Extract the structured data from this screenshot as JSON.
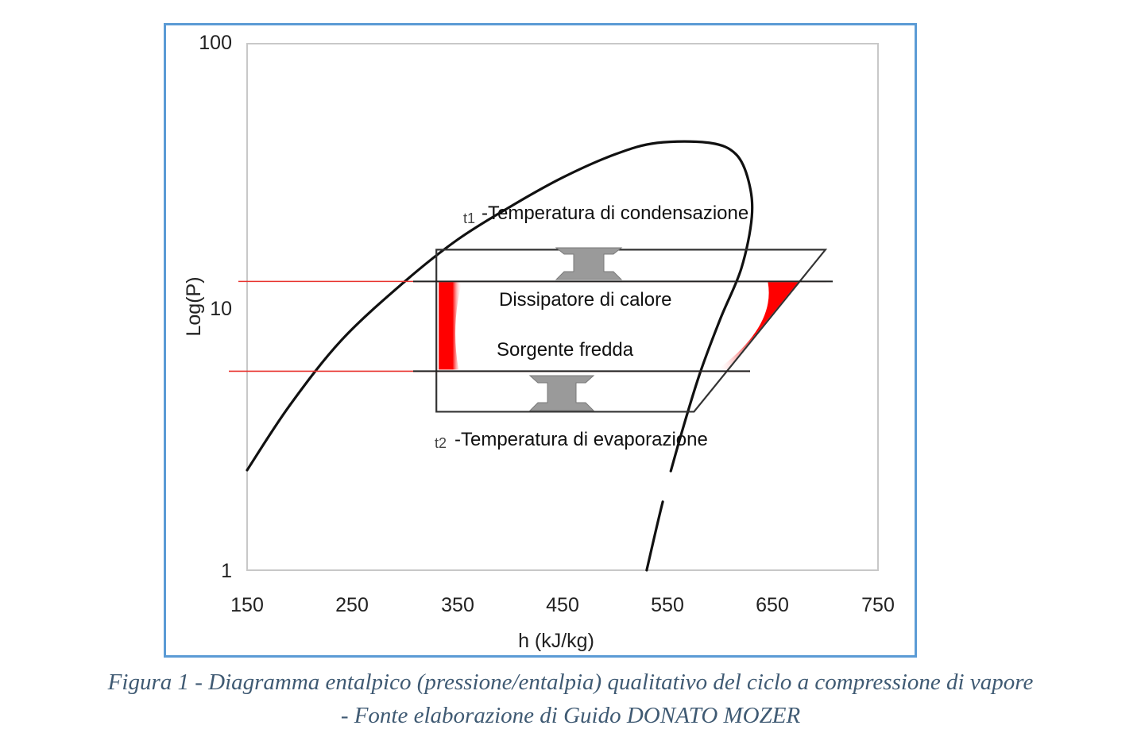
{
  "chart_data": {
    "type": "line",
    "title": "",
    "xlabel": "h (kJ/kg)",
    "ylabel": "Log(P)",
    "x_ticks": [
      "150",
      "250",
      "350",
      "450",
      "550",
      "650",
      "750"
    ],
    "y_ticks": [
      "100",
      "10",
      "1"
    ],
    "xlim": [
      150,
      750
    ],
    "ylim_log10": [
      1,
      100
    ],
    "series": [
      {
        "name": "saturation-dome",
        "points": [
          [
            150,
            2.4
          ],
          [
            190,
            4.2
          ],
          [
            240,
            7.5
          ],
          [
            300,
            12.5
          ],
          [
            350,
            18
          ],
          [
            400,
            24
          ],
          [
            450,
            31
          ],
          [
            500,
            38
          ],
          [
            540,
            42
          ],
          [
            590,
            42
          ],
          [
            615,
            38
          ],
          [
            627,
            30
          ],
          [
            630,
            22
          ],
          [
            620,
            14
          ],
          [
            600,
            9
          ],
          [
            580,
            5.5
          ],
          [
            560,
            3
          ],
          [
            545,
            1.8
          ],
          [
            530,
            1
          ]
        ]
      }
    ],
    "cycle": {
      "h_left": 330,
      "h_top_right": 700,
      "h_bottom_right": 575,
      "p_high": 16.5,
      "p_low": 4.0
    },
    "red_lines": {
      "p_upper": 12.5,
      "p_lower": 5.7
    },
    "annotations": {
      "t1_label": "t1",
      "condensation": "-Temperatura di condensazione",
      "dissipator": "Dissipatore di calore",
      "source": "Sorgente fredda",
      "t2_label": "t2",
      "evaporation": "-Temperatura di evaporazione"
    },
    "colors": {
      "curve": "#111111",
      "cycle": "#333333",
      "red_line": "#e8322e",
      "red_fill": "#ff0000",
      "arrow": "#999999",
      "frame": "#5b9bd5"
    }
  },
  "caption": {
    "line1": "Figura 1 - Diagramma entalpico (pressione/entalpia) qualitativo del ciclo a compressione di vapore",
    "line2": "- Fonte elaborazione di Guido DONATO MOZER"
  }
}
